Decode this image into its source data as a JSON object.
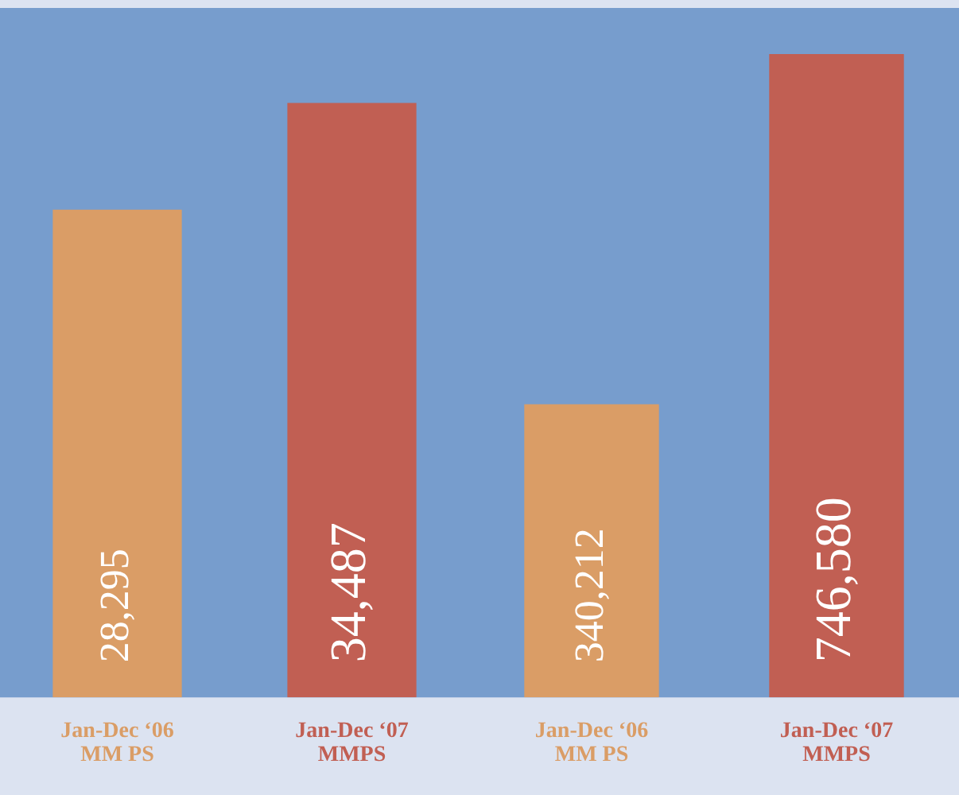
{
  "chart_data": [
    {
      "type": "bar",
      "categories": [
        "Jan-Dec ‘06\nMM PS",
        "Jan-Dec ‘07\nMMPS"
      ],
      "values": [
        28295,
        34487
      ],
      "colors": [
        "#da9d66",
        "#c15f53"
      ],
      "value_labels": [
        "28,295",
        "34,487"
      ],
      "grid": false,
      "legend": false
    },
    {
      "type": "bar",
      "categories": [
        "Jan-Dec ‘06\nMM PS",
        "Jan-Dec ‘07\nMMPS"
      ],
      "values": [
        340212,
        746580
      ],
      "colors": [
        "#da9d66",
        "#c15f53"
      ],
      "value_labels": [
        "340,212",
        "746,580"
      ],
      "grid": false,
      "legend": false
    }
  ]
}
